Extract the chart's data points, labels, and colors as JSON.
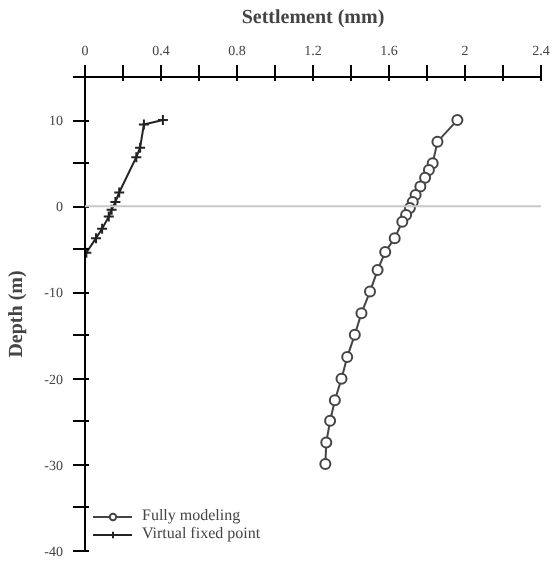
{
  "chart_data": {
    "type": "line",
    "xlabel": "Settlement (mm)",
    "ylabel": "Depth (m)",
    "xlim": [
      0,
      2.4
    ],
    "ylim": [
      -40,
      15
    ],
    "xticks": [
      0,
      {
        "value": 0.2,
        "label": null
      },
      0.4,
      {
        "value": 0.6,
        "label": null
      },
      0.8,
      {
        "value": 1.0,
        "label": null
      },
      1.2,
      {
        "value": 1.4,
        "label": null
      },
      1.6,
      {
        "value": 1.8,
        "label": null
      },
      2,
      {
        "value": 2.2,
        "label": null
      },
      2.4
    ],
    "yticks": [
      {
        "value": 15,
        "label": null
      },
      10,
      {
        "value": 5,
        "label": null
      },
      0,
      {
        "value": -5,
        "label": null
      },
      -10,
      {
        "value": -15,
        "label": null
      },
      -20,
      {
        "value": -25,
        "label": null
      },
      -30,
      {
        "value": -35,
        "label": null
      },
      -40
    ],
    "ref_lines": [
      {
        "axis": "y",
        "value": 0,
        "color": "#c8c8c8"
      }
    ],
    "legend": "bottom left",
    "series": [
      {
        "name": "Fully modeling",
        "color": "#444444",
        "marker": "circle",
        "x": [
          1.96,
          1.855,
          1.83,
          1.81,
          1.79,
          1.765,
          1.74,
          1.725,
          1.71,
          1.69,
          1.67,
          1.63,
          1.58,
          1.54,
          1.5,
          1.455,
          1.42,
          1.38,
          1.35,
          1.315,
          1.29,
          1.27,
          1.265
        ],
        "values": [
          10,
          7.5,
          5,
          4.2,
          3.3,
          2.3,
          1.3,
          0.5,
          -0.2,
          -1,
          -1.8,
          -3.7,
          -5.3,
          -7.4,
          -9.9,
          -12.4,
          -14.9,
          -17.5,
          -20,
          -22.5,
          -24.9,
          -27.4,
          -29.9
        ]
      },
      {
        "name": "Virtual fixed point",
        "color": "#222222",
        "marker": "cross",
        "x": [
          0.41,
          0.31,
          0.29,
          0.27,
          0.18,
          0.16,
          0.14,
          0.125,
          0.09,
          0.058,
          0.007
        ],
        "values": [
          10,
          9.5,
          6.8,
          5.7,
          1.6,
          0.5,
          -0.4,
          -1.2,
          -2.6,
          -3.7,
          -5.4
        ]
      }
    ]
  }
}
